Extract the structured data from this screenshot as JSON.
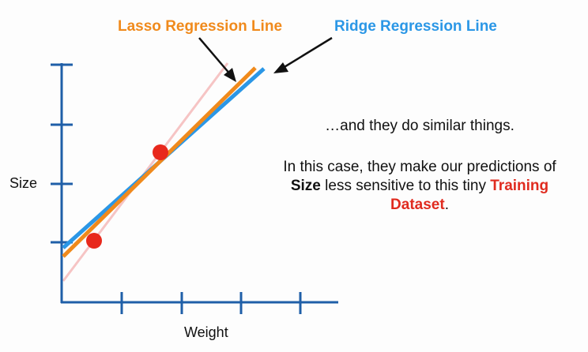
{
  "labels": {
    "lasso_line": "Lasso Regression Line",
    "ridge_line": "Ridge Regression Line",
    "x_axis": "Weight",
    "y_axis": "Size"
  },
  "caption": {
    "line1": "…and they do similar things.",
    "line2_part1": "In this case, they make our predictions of",
    "line2_bold": "Size",
    "line2_part2": " less sensitive to this tiny ",
    "line2_red1": "Training",
    "line2_red2": "Dataset",
    "line2_end": "."
  },
  "colors": {
    "axis": "#1f5fa8",
    "lasso": "#f08a1c",
    "ridge": "#2b97e6",
    "ols_line": "#f6c4c4",
    "point": "#e8281c",
    "arrow": "#111111",
    "text_red": "#e02b1f"
  }
}
